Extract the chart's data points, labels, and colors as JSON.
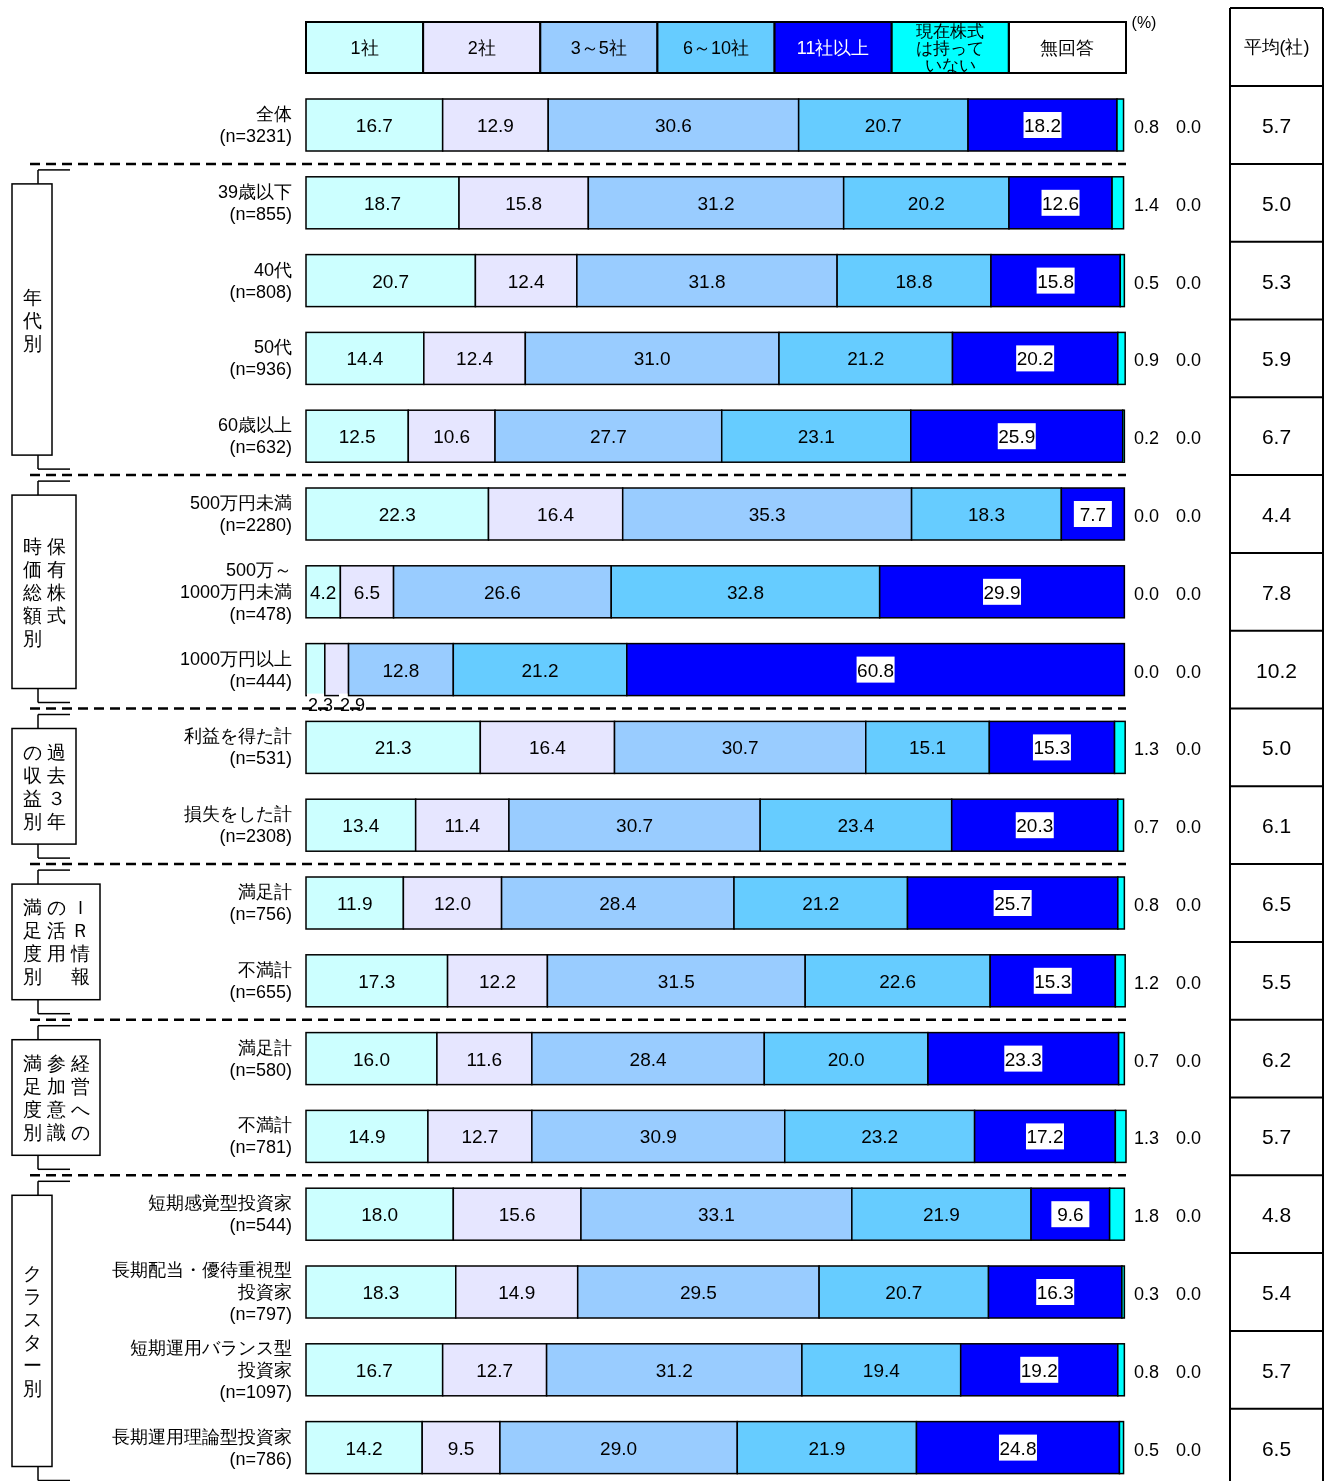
{
  "chart_data": [
    {
      "type": "bar",
      "orientation": "horizontal",
      "stacked": true,
      "legend": "top",
      "tick_labels": false,
      "xlim": [
        0,
        100.2
      ],
      "categories": [
        "全体\n(n=3231)",
        "39歳以下\n(n=855)",
        "40代\n(n=808)",
        "50代\n(n=936)",
        "60歳以上\n(n=632)",
        "500万円未満\n(n=2280)",
        "500万～\n1000万円未満\n(n=478)",
        "1000万円以上\n(n=444)",
        "利益を得た計\n(n=531)",
        "損失をした計\n(n=2308)",
        "満足計\n(n=756)",
        "不満計\n(n=655)",
        "満足計\n(n=580)",
        "不満計\n(n=781)",
        "短期感覚型投資家\n(n=544)",
        "長期配当・優待重視型投資家\n(n=797)",
        "短期運用バランス型投資家\n(n=1097)",
        "長期運用理論型投資家\n(n=786)"
      ],
      "series": [
        {
          "name": "1社",
          "color": "#ccffff",
          "values": [
            16.7,
            18.7,
            20.7,
            14.4,
            12.5,
            22.3,
            4.2,
            2.3,
            21.3,
            13.4,
            11.9,
            17.3,
            16.0,
            14.9,
            18.0,
            18.3,
            16.7,
            14.2
          ],
          "value_labels": [
            "16.7",
            "18.7",
            "20.7",
            "14.4",
            "12.5",
            "22.3",
            "4.2",
            "2.3",
            "21.3",
            "13.4",
            "11.9",
            "17.3",
            "16.0",
            "14.9",
            "18.0",
            "18.3",
            "16.7",
            "14.2"
          ]
        },
        {
          "name": "2社",
          "color": "#e6e6ff",
          "values": [
            12.9,
            15.8,
            12.4,
            12.4,
            10.6,
            16.4,
            6.5,
            2.9,
            16.4,
            11.4,
            12.0,
            12.2,
            11.6,
            12.7,
            15.6,
            14.9,
            12.7,
            9.5
          ],
          "value_labels": [
            "12.9",
            "15.8",
            "12.4",
            "12.4",
            "10.6",
            "16.4",
            "6.5",
            "2.9",
            "16.4",
            "11.4",
            "12.0",
            "12.2",
            "11.6",
            "12.7",
            "15.6",
            "14.9",
            "12.7",
            "9.5"
          ]
        },
        {
          "name": "3～5社",
          "color": "#99ccff",
          "values": [
            30.6,
            31.2,
            31.8,
            31.0,
            27.7,
            35.3,
            26.6,
            12.8,
            30.7,
            30.7,
            28.4,
            31.5,
            28.4,
            30.9,
            33.1,
            29.5,
            31.2,
            29.0
          ],
          "value_labels": [
            "30.6",
            "31.2",
            "31.8",
            "31.0",
            "27.7",
            "35.3",
            "26.6",
            "12.8",
            "30.7",
            "30.7",
            "28.4",
            "31.5",
            "28.4",
            "30.9",
            "33.1",
            "29.5",
            "31.2",
            "29.0"
          ]
        },
        {
          "name": "6～10社",
          "color": "#66ccff",
          "values": [
            20.7,
            20.2,
            18.8,
            21.2,
            23.1,
            18.3,
            32.8,
            21.2,
            15.1,
            23.4,
            21.2,
            22.6,
            20.0,
            23.2,
            21.9,
            20.7,
            19.4,
            21.9
          ],
          "value_labels": [
            "20.7",
            "20.2",
            "18.8",
            "21.2",
            "23.1",
            "18.3",
            "32.8",
            "21.2",
            "15.1",
            "23.4",
            "21.2",
            "22.6",
            "20.0",
            "23.2",
            "21.9",
            "20.7",
            "19.4",
            "21.9"
          ]
        },
        {
          "name": "11社以上",
          "color": "#0000ff",
          "values": [
            18.2,
            12.6,
            15.8,
            20.2,
            25.9,
            7.7,
            29.9,
            60.8,
            15.3,
            20.3,
            25.7,
            15.3,
            23.3,
            17.2,
            9.6,
            16.3,
            19.2,
            24.8
          ],
          "value_labels": [
            "18.2",
            "12.6",
            "15.8",
            "20.2",
            "25.9",
            "7.7",
            "29.9",
            "60.8",
            "15.3",
            "20.3",
            "25.7",
            "15.3",
            "23.3",
            "17.2",
            "9.6",
            "16.3",
            "19.2",
            "24.8"
          ]
        },
        {
          "name": "現在株式は持っていない",
          "color": "#00ffff",
          "values": [
            0.8,
            1.4,
            0.5,
            0.9,
            0.2,
            0.0,
            0.0,
            0.0,
            1.3,
            0.7,
            0.8,
            1.2,
            0.7,
            1.3,
            1.8,
            0.3,
            0.8,
            0.5
          ],
          "value_labels": [
            "0.8",
            "1.4",
            "0.5",
            "0.9",
            "0.2",
            "0.0",
            "0.0",
            "0.0",
            "1.3",
            "0.7",
            "0.8",
            "1.2",
            "0.7",
            "1.3",
            "1.8",
            "0.3",
            "0.8",
            "0.5"
          ]
        },
        {
          "name": "無回答",
          "values": [
            0.0,
            0.0,
            0.0,
            0.0,
            0.0,
            0.0,
            0.0,
            0.0,
            0.0,
            0.0,
            0.0,
            0.0,
            0.0,
            0.0,
            0.0,
            0.0,
            0.0,
            0.0
          ],
          "value_labels": [
            "0.0",
            "0.0",
            "0.0",
            "0.0",
            "0.0",
            "0.0",
            "0.0",
            "0.0",
            "0.0",
            "0.0",
            "0.0",
            "0.0",
            "0.0",
            "0.0",
            "0.0",
            "0.0",
            "0.0",
            "0.0"
          ]
        }
      ],
      "annotations": [
        "(%)",
        "年代別",
        "保有株式",
        "時価総額別",
        "過去３年",
        "の収益別",
        "ＩＲ情報",
        "の活用",
        "満足度別",
        "経営への",
        "参加意識",
        "満足度別",
        "クラスター別"
      ]
    },
    {
      "type": "other",
      "title": "平均(社)",
      "annotations": [
        "5.7",
        "5.0",
        "5.3",
        "5.9",
        "6.7",
        "4.4",
        "7.8",
        "10.2",
        "5.0",
        "6.1",
        "6.5",
        "5.5",
        "6.2",
        "5.7",
        "4.8",
        "5.4",
        "5.7",
        "6.5"
      ]
    }
  ]
}
